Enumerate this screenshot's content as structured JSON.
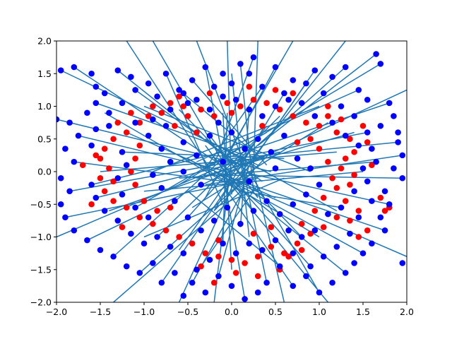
{
  "chart_data": {
    "type": "scatter",
    "title": "",
    "xlabel": "",
    "ylabel": "",
    "xlim": [
      -2.0,
      2.0
    ],
    "ylim": [
      -2.0,
      2.0
    ],
    "grid": false,
    "xticks": [
      "−2.0",
      "−1.5",
      "−1.0",
      "−0.5",
      "0.0",
      "0.5",
      "1.0",
      "1.5",
      "2.0"
    ],
    "yticks": [
      "−2.0",
      "−1.5",
      "−1.0",
      "−0.5",
      "0.0",
      "0.5",
      "1.0",
      "1.5",
      "2.0"
    ],
    "colors": {
      "red": "#ff0000",
      "blue": "#0000ff",
      "line": "#1f77b4"
    },
    "red_points": [
      [
        -0.9,
        1.0
      ],
      [
        -0.7,
        1.05
      ],
      [
        -0.55,
        1.0
      ],
      [
        -0.35,
        0.95
      ],
      [
        -0.2,
        0.85
      ],
      [
        -0.05,
        1.05
      ],
      [
        0.1,
        1.0
      ],
      [
        0.25,
        1.1
      ],
      [
        0.4,
        1.05
      ],
      [
        0.55,
        0.95
      ],
      [
        0.7,
        0.85
      ],
      [
        0.85,
        0.75
      ],
      [
        1.0,
        0.7
      ],
      [
        1.1,
        0.85
      ],
      [
        1.25,
        0.8
      ],
      [
        1.2,
        0.6
      ],
      [
        1.35,
        0.5
      ],
      [
        1.4,
        0.3
      ],
      [
        1.3,
        0.2
      ],
      [
        1.25,
        0.05
      ],
      [
        1.4,
        -0.05
      ],
      [
        1.35,
        -0.2
      ],
      [
        1.2,
        -0.25
      ],
      [
        1.3,
        -0.45
      ],
      [
        1.45,
        -0.6
      ],
      [
        1.35,
        -0.75
      ],
      [
        1.2,
        -0.7
      ],
      [
        1.05,
        -0.85
      ],
      [
        0.9,
        -0.95
      ],
      [
        0.75,
        -1.1
      ],
      [
        0.6,
        -1.25
      ],
      [
        0.45,
        -1.15
      ],
      [
        0.3,
        -1.3
      ],
      [
        0.15,
        -1.4
      ],
      [
        0.0,
        -1.35
      ],
      [
        -0.15,
        -1.3
      ],
      [
        -0.3,
        -1.25
      ],
      [
        -0.45,
        -1.1
      ],
      [
        -0.6,
        -1.0
      ],
      [
        -0.75,
        -0.9
      ],
      [
        -0.9,
        -0.8
      ],
      [
        -1.05,
        -0.7
      ],
      [
        -1.2,
        -0.55
      ],
      [
        -1.35,
        -0.45
      ],
      [
        -1.45,
        -0.3
      ],
      [
        -1.5,
        -0.1
      ],
      [
        -1.4,
        0.05
      ],
      [
        -1.5,
        0.2
      ],
      [
        -1.45,
        0.35
      ],
      [
        -1.35,
        0.5
      ],
      [
        -1.2,
        0.6
      ],
      [
        -1.05,
        0.75
      ],
      [
        -1.15,
        0.9
      ],
      [
        -0.95,
        0.85
      ],
      [
        -0.8,
        0.9
      ],
      [
        -0.65,
        0.7
      ],
      [
        -0.5,
        0.85
      ],
      [
        0.9,
        0.5
      ],
      [
        1.0,
        0.35
      ],
      [
        1.1,
        0.15
      ],
      [
        1.15,
        -0.1
      ],
      [
        1.05,
        -0.4
      ],
      [
        0.95,
        -0.6
      ],
      [
        -1.05,
        0.4
      ],
      [
        -1.1,
        0.2
      ],
      [
        -1.15,
        0.0
      ],
      [
        -1.1,
        -0.2
      ],
      [
        -1.0,
        -0.45
      ],
      [
        -0.85,
        -0.6
      ],
      [
        0.8,
        -0.8
      ],
      [
        0.2,
        1.3
      ],
      [
        -0.25,
        1.2
      ],
      [
        0.5,
        1.25
      ],
      [
        -0.6,
        1.15
      ],
      [
        1.6,
        0.1
      ],
      [
        1.7,
        -0.4
      ],
      [
        1.5,
        0.7
      ],
      [
        -1.7,
        0.1
      ],
      [
        -1.6,
        -0.5
      ],
      [
        0.3,
        -1.6
      ],
      [
        0.55,
        -1.5
      ],
      [
        -0.2,
        -1.7
      ],
      [
        0.05,
        -1.55
      ],
      [
        0.65,
        -1.3
      ],
      [
        -0.35,
        -1.45
      ],
      [
        0.8,
        -1.2
      ],
      [
        1.55,
        -0.9
      ],
      [
        1.75,
        -0.6
      ],
      [
        0.7,
        1.2
      ],
      [
        -1.3,
        0.75
      ],
      [
        1.55,
        0.45
      ],
      [
        -0.4,
        0.6
      ],
      [
        0.35,
        0.7
      ],
      [
        0.25,
        -0.95
      ],
      [
        -0.7,
        -0.55
      ],
      [
        0.75,
        0.45
      ],
      [
        -1.25,
        -0.85
      ],
      [
        1.1,
        1.0
      ],
      [
        -1.55,
        0.25
      ],
      [
        0.0,
        0.9
      ],
      [
        1.45,
        -1.0
      ],
      [
        -1.35,
        -0.15
      ],
      [
        0.45,
        -0.85
      ],
      [
        -0.15,
        -1.05
      ],
      [
        1.8,
        -0.55
      ]
    ],
    "blue_points": [
      [
        -1.95,
        1.55
      ],
      [
        -1.8,
        1.6
      ],
      [
        -1.6,
        1.5
      ],
      [
        -1.55,
        1.3
      ],
      [
        -1.45,
        1.2
      ],
      [
        -1.3,
        1.55
      ],
      [
        -1.15,
        1.45
      ],
      [
        -1.1,
        1.25
      ],
      [
        -0.95,
        1.35
      ],
      [
        -0.85,
        1.15
      ],
      [
        -0.75,
        1.5
      ],
      [
        -0.6,
        1.25
      ],
      [
        -0.5,
        1.05
      ],
      [
        -0.45,
        1.4
      ],
      [
        -0.3,
        1.6
      ],
      [
        -0.2,
        1.3
      ],
      [
        -0.1,
        1.5
      ],
      [
        0.0,
        1.35
      ],
      [
        0.1,
        1.65
      ],
      [
        0.2,
        1.5
      ],
      [
        0.25,
        1.75
      ],
      [
        0.35,
        1.3
      ],
      [
        0.5,
        1.6
      ],
      [
        0.6,
        1.2
      ],
      [
        0.7,
        1.4
      ],
      [
        0.85,
        1.35
      ],
      [
        0.95,
        1.55
      ],
      [
        1.05,
        1.2
      ],
      [
        1.15,
        1.45
      ],
      [
        1.3,
        1.6
      ],
      [
        1.45,
        1.25
      ],
      [
        1.55,
        1.1
      ],
      [
        1.65,
        1.8
      ],
      [
        1.7,
        1.65
      ],
      [
        1.8,
        1.05
      ],
      [
        1.85,
        0.85
      ],
      [
        1.7,
        0.7
      ],
      [
        1.9,
        0.45
      ],
      [
        1.95,
        0.25
      ],
      [
        1.85,
        0.05
      ],
      [
        1.95,
        -0.1
      ],
      [
        1.75,
        -0.3
      ],
      [
        1.8,
        -0.5
      ],
      [
        1.7,
        -0.7
      ],
      [
        1.75,
        -0.9
      ],
      [
        1.6,
        -1.1
      ],
      [
        1.5,
        -1.25
      ],
      [
        1.4,
        -1.4
      ],
      [
        1.3,
        -1.55
      ],
      [
        1.15,
        -1.7
      ],
      [
        1.0,
        -1.85
      ],
      [
        0.85,
        -1.6
      ],
      [
        0.7,
        -1.75
      ],
      [
        0.55,
        -1.45
      ],
      [
        0.4,
        -1.7
      ],
      [
        0.3,
        -1.85
      ],
      [
        0.15,
        -1.95
      ],
      [
        0.0,
        -1.75
      ],
      [
        -0.15,
        -1.6
      ],
      [
        -0.3,
        -1.85
      ],
      [
        -0.45,
        -1.7
      ],
      [
        -0.55,
        -1.9
      ],
      [
        -0.65,
        -1.55
      ],
      [
        -0.8,
        -1.7
      ],
      [
        -0.9,
        -1.4
      ],
      [
        -1.05,
        -1.55
      ],
      [
        -1.2,
        -1.45
      ],
      [
        -1.35,
        -1.3
      ],
      [
        -1.5,
        -1.2
      ],
      [
        -1.65,
        -1.05
      ],
      [
        -1.8,
        -0.9
      ],
      [
        -1.9,
        -0.7
      ],
      [
        -1.95,
        -0.5
      ],
      [
        -1.85,
        -0.3
      ],
      [
        -1.95,
        -0.1
      ],
      [
        -1.8,
        0.15
      ],
      [
        -1.9,
        0.35
      ],
      [
        -1.75,
        0.55
      ],
      [
        -1.85,
        0.75
      ],
      [
        -1.65,
        0.9
      ],
      [
        -1.55,
        1.05
      ],
      [
        -1.4,
        0.9
      ],
      [
        -1.25,
        1.05
      ],
      [
        -1.1,
        0.75
      ],
      [
        -0.95,
        0.55
      ],
      [
        -0.8,
        0.35
      ],
      [
        -0.7,
        0.15
      ],
      [
        -0.55,
        0.45
      ],
      [
        -0.4,
        0.25
      ],
      [
        -0.25,
        0.55
      ],
      [
        -0.15,
        0.75
      ],
      [
        0.0,
        0.6
      ],
      [
        0.15,
        0.35
      ],
      [
        0.3,
        0.5
      ],
      [
        0.45,
        0.3
      ],
      [
        0.6,
        0.55
      ],
      [
        0.75,
        0.2
      ],
      [
        0.9,
        0.05
      ],
      [
        1.0,
        -0.2
      ],
      [
        0.85,
        -0.35
      ],
      [
        0.7,
        -0.5
      ],
      [
        0.55,
        -0.65
      ],
      [
        0.4,
        -0.45
      ],
      [
        0.25,
        -0.6
      ],
      [
        0.1,
        -0.8
      ],
      [
        -0.05,
        -0.55
      ],
      [
        -0.2,
        -0.75
      ],
      [
        -0.35,
        -0.9
      ],
      [
        -0.5,
        -0.7
      ],
      [
        -0.65,
        -0.45
      ],
      [
        -0.8,
        -0.25
      ],
      [
        -0.9,
        -0.05
      ],
      [
        -0.55,
        0.0
      ],
      [
        -0.35,
        -0.2
      ],
      [
        0.2,
        -0.15
      ],
      [
        0.5,
        0.05
      ],
      [
        -0.1,
        0.15
      ],
      [
        1.25,
        1.0
      ],
      [
        1.4,
        0.85
      ],
      [
        1.55,
        0.6
      ],
      [
        1.6,
        0.35
      ],
      [
        1.65,
        0.15
      ],
      [
        1.55,
        -0.15
      ],
      [
        1.6,
        -0.45
      ],
      [
        1.45,
        -0.7
      ],
      [
        1.35,
        -0.95
      ],
      [
        1.2,
        -1.15
      ],
      [
        1.05,
        -1.3
      ],
      [
        0.9,
        -1.45
      ],
      [
        0.7,
        -1.25
      ],
      [
        0.5,
        -1.05
      ],
      [
        0.35,
        -1.2
      ],
      [
        0.2,
        -1.1
      ],
      [
        0.05,
        -1.25
      ],
      [
        -0.1,
        -1.1
      ],
      [
        -0.25,
        -1.35
      ],
      [
        -0.4,
        -1.5
      ],
      [
        -0.55,
        -1.25
      ],
      [
        -0.7,
        -1.15
      ],
      [
        -0.85,
        -1.0
      ],
      [
        -1.0,
        -1.1
      ],
      [
        -1.15,
        -0.95
      ],
      [
        -1.3,
        -0.75
      ],
      [
        -1.45,
        -0.6
      ],
      [
        -1.55,
        -0.4
      ],
      [
        -1.6,
        -0.2
      ],
      [
        -1.6,
        0.4
      ],
      [
        -1.55,
        0.65
      ],
      [
        -1.4,
        0.7
      ],
      [
        -1.25,
        0.3
      ],
      [
        -1.2,
        0.1
      ],
      [
        -1.3,
        -0.1
      ],
      [
        -1.25,
        -0.35
      ],
      [
        -1.1,
        -0.55
      ],
      [
        -0.95,
        -0.7
      ],
      [
        0.95,
        0.85
      ],
      [
        1.15,
        0.75
      ],
      [
        1.3,
        0.55
      ],
      [
        1.45,
        0.4
      ],
      [
        1.5,
        0.05
      ],
      [
        1.4,
        -0.3
      ],
      [
        1.25,
        -0.55
      ],
      [
        1.1,
        -0.65
      ],
      [
        0.95,
        -0.9
      ],
      [
        0.8,
        -1.0
      ],
      [
        0.65,
        -0.9
      ],
      [
        -0.7,
        0.95
      ],
      [
        -0.55,
        1.2
      ],
      [
        -0.4,
        1.1
      ],
      [
        -0.25,
        0.95
      ],
      [
        -0.1,
        1.15
      ],
      [
        0.05,
        1.1
      ],
      [
        0.2,
        0.95
      ],
      [
        0.35,
        0.85
      ],
      [
        0.5,
        1.0
      ],
      [
        0.65,
        1.1
      ],
      [
        0.8,
        1.05
      ],
      [
        -0.75,
        0.7
      ],
      [
        -0.9,
        0.8
      ],
      [
        1.9,
        0.6
      ],
      [
        -2.0,
        0.8
      ],
      [
        1.95,
        -1.4
      ]
    ],
    "segments": [
      [
        -1.95,
        1.55,
        0.3,
        0.1
      ],
      [
        -1.8,
        1.6,
        0.05,
        -0.05
      ],
      [
        -1.3,
        1.55,
        0.1,
        0.05
      ],
      [
        -0.75,
        1.5,
        -0.1,
        -0.5
      ],
      [
        -0.45,
        1.4,
        0.4,
        0.1
      ],
      [
        -0.3,
        1.6,
        -0.05,
        -0.15
      ],
      [
        0.1,
        1.65,
        0.25,
        -0.3
      ],
      [
        0.25,
        1.75,
        -0.2,
        0.1
      ],
      [
        0.5,
        1.6,
        -0.3,
        -0.4
      ],
      [
        0.95,
        1.55,
        0.05,
        -0.2
      ],
      [
        1.3,
        1.6,
        0.0,
        0.05
      ],
      [
        1.65,
        1.8,
        0.3,
        0.4
      ],
      [
        1.7,
        1.65,
        -0.6,
        -0.2
      ],
      [
        1.8,
        1.05,
        -0.3,
        0.1
      ],
      [
        1.9,
        0.45,
        0.0,
        0.2
      ],
      [
        1.95,
        -0.1,
        -0.25,
        -0.05
      ],
      [
        1.8,
        -0.5,
        0.1,
        0.0
      ],
      [
        1.75,
        -0.9,
        0.0,
        -0.1
      ],
      [
        1.5,
        -1.25,
        -0.2,
        0.0
      ],
      [
        1.3,
        -1.55,
        0.05,
        -0.2
      ],
      [
        1.0,
        -1.85,
        0.2,
        0.0
      ],
      [
        0.7,
        -1.75,
        -0.05,
        -0.3
      ],
      [
        0.4,
        -1.7,
        0.1,
        0.25
      ],
      [
        0.15,
        -1.95,
        -0.1,
        0.0
      ],
      [
        -0.15,
        -1.6,
        0.2,
        0.1
      ],
      [
        -0.45,
        -1.7,
        0.15,
        -0.25
      ],
      [
        -0.8,
        -1.7,
        0.0,
        -0.15
      ],
      [
        -1.05,
        -1.55,
        0.25,
        0.0
      ],
      [
        -1.35,
        -1.3,
        -0.1,
        0.2
      ],
      [
        -1.65,
        -1.05,
        0.05,
        0.05
      ],
      [
        -1.9,
        -0.7,
        0.3,
        -0.1
      ],
      [
        -1.85,
        -0.3,
        0.0,
        0.15
      ],
      [
        -1.8,
        0.15,
        0.2,
        -0.2
      ],
      [
        -1.75,
        0.55,
        -0.05,
        0.0
      ],
      [
        -1.55,
        1.05,
        0.15,
        0.25
      ],
      [
        -1.1,
        1.25,
        0.35,
        -0.15
      ],
      [
        -0.6,
        1.25,
        0.25,
        0.3
      ],
      [
        0.35,
        1.3,
        -0.3,
        0.05
      ],
      [
        0.85,
        1.35,
        0.1,
        -0.1
      ],
      [
        1.45,
        1.25,
        -0.4,
        0.15
      ],
      [
        -2.0,
        0.8,
        0.45,
        0.0
      ],
      [
        -2.0,
        -1.0,
        0.1,
        0.2
      ],
      [
        2.0,
        -1.3,
        -0.15,
        -0.05
      ],
      [
        2.0,
        1.25,
        0.0,
        0.0
      ],
      [
        1.95,
        0.25,
        -0.3,
        -0.2
      ],
      [
        -0.05,
        2.0,
        0.0,
        -0.35
      ],
      [
        -0.4,
        2.0,
        0.15,
        0.1
      ],
      [
        0.3,
        2.0,
        0.25,
        0.05
      ],
      [
        -0.9,
        2.0,
        0.05,
        -0.2
      ],
      [
        0.7,
        2.0,
        -0.1,
        0.15
      ],
      [
        -1.2,
        2.0,
        -0.25,
        0.05
      ],
      [
        1.3,
        2.0,
        0.0,
        -0.2
      ],
      [
        -0.2,
        -2.0,
        0.0,
        0.2
      ],
      [
        0.6,
        -2.0,
        0.2,
        0.3
      ],
      [
        -0.6,
        -2.0,
        0.05,
        -0.1
      ],
      [
        1.1,
        -2.0,
        -0.1,
        -0.05
      ],
      [
        -1.35,
        -2.0,
        0.15,
        -0.25
      ],
      [
        -1.0,
        1.0,
        0.9,
        0.0
      ],
      [
        1.0,
        1.0,
        -0.9,
        0.0
      ],
      [
        1.0,
        -1.0,
        -0.5,
        0.2
      ],
      [
        -1.0,
        -1.0,
        0.6,
        -0.1
      ],
      [
        -1.5,
        0.0,
        1.2,
        0.3
      ],
      [
        1.5,
        0.0,
        -1.0,
        -0.3
      ],
      [
        0.0,
        1.5,
        0.2,
        -1.0
      ],
      [
        0.0,
        -1.5,
        -0.1,
        0.9
      ],
      [
        -1.2,
        0.6,
        0.5,
        -0.4
      ],
      [
        1.2,
        -0.6,
        -0.3,
        0.5
      ],
      [
        -0.6,
        -1.2,
        0.4,
        0.7
      ],
      [
        0.6,
        1.2,
        -0.2,
        -0.6
      ],
      [
        -1.4,
        -0.6,
        0.3,
        0.2
      ],
      [
        1.4,
        0.6,
        -0.4,
        -0.1
      ],
      [
        -0.35,
        -1.45,
        0.3,
        -0.2
      ],
      [
        0.9,
        -1.45,
        -0.2,
        0.2
      ],
      [
        -1.45,
        0.9,
        0.1,
        -0.3
      ],
      [
        1.55,
        0.6,
        0.2,
        0.25
      ],
      [
        -1.6,
        -0.2,
        0.2,
        0.4
      ],
      [
        0.55,
        -1.45,
        -0.5,
        -0.3
      ],
      [
        -1.25,
        0.3,
        0.6,
        0.2
      ],
      [
        1.25,
        -0.55,
        0.1,
        -0.3
      ],
      [
        -0.5,
        -0.7,
        0.3,
        0.5
      ],
      [
        0.45,
        0.3,
        -0.2,
        -0.6
      ],
      [
        -0.25,
        0.55,
        0.3,
        -0.4
      ],
      [
        0.25,
        -0.6,
        -0.3,
        0.4
      ],
      [
        -1.1,
        -0.55,
        0.4,
        0.6
      ],
      [
        1.1,
        0.75,
        -0.45,
        -0.55
      ],
      [
        -0.85,
        -1.0,
        0.55,
        0.85
      ],
      [
        0.8,
        -1.0,
        -0.6,
        0.95
      ],
      [
        1.65,
        0.15,
        -0.6,
        -0.1
      ],
      [
        -1.55,
        -0.4,
        0.55,
        0.3
      ],
      [
        0.2,
        0.95,
        0.1,
        -0.85
      ],
      [
        -0.1,
        -1.1,
        -0.05,
        0.9
      ]
    ]
  }
}
